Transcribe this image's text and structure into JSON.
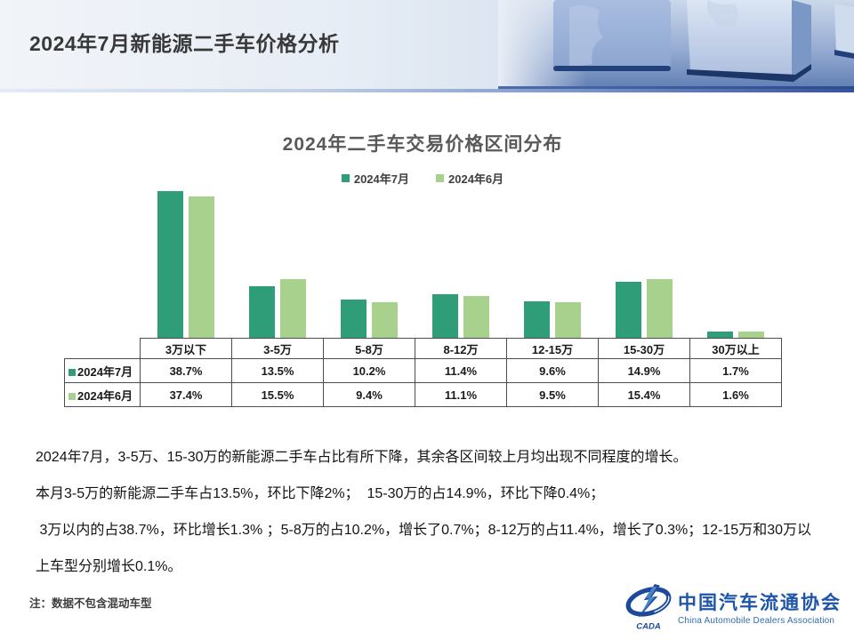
{
  "header": {
    "title": "2024年7月新能源二手车价格分析"
  },
  "chart_data": {
    "type": "bar",
    "title": "2024年二手车交易价格区间分布",
    "categories": [
      "3万以下",
      "3-5万",
      "5-8万",
      "8-12万",
      "12-15万",
      "15-30万",
      "30万以上"
    ],
    "series": [
      {
        "name": "2024年7月",
        "color": "#2e9d78",
        "values": [
          38.7,
          13.5,
          10.2,
          11.4,
          9.6,
          14.9,
          1.7
        ]
      },
      {
        "name": "2024年6月",
        "color": "#a9d18e",
        "values": [
          37.4,
          15.5,
          9.4,
          11.1,
          9.5,
          15.4,
          1.6
        ]
      }
    ],
    "value_suffix": "%",
    "ylim": [
      0,
      40
    ],
    "grid": false,
    "legend_position": "top",
    "data_table_shown": true
  },
  "body": {
    "paragraphs": [
      "2024年7月，3-5万、15-30万的新能源二手车占比有所下降，其余各区间较上月均出现不同程度的增长。",
      "本月3-5万的新能源二手车占13.5%，环比下降2%；  15-30万的占14.9%，环比下降0.4%；",
      " 3万以内的占38.7%，环比增长1.3% ；5-8万的占10.2%，增长了0.7%；8-12万的占11.4%，增长了0.3%；12-15万和30万以上车型分别增长0.1%。"
    ]
  },
  "note": {
    "text": "注：数据不包含混动车型"
  },
  "logo": {
    "cn": "中国汽车流通协会",
    "en": "China Automobile Dealers Association",
    "mark": "CADA",
    "blue": "#1d55a8"
  },
  "colors": {
    "series_july": "#2e9d78",
    "series_june": "#a9d18e",
    "chart_title_gray": "#595959",
    "header_strip_blue": "#33549a",
    "logo_blue": "#1d55a8"
  }
}
